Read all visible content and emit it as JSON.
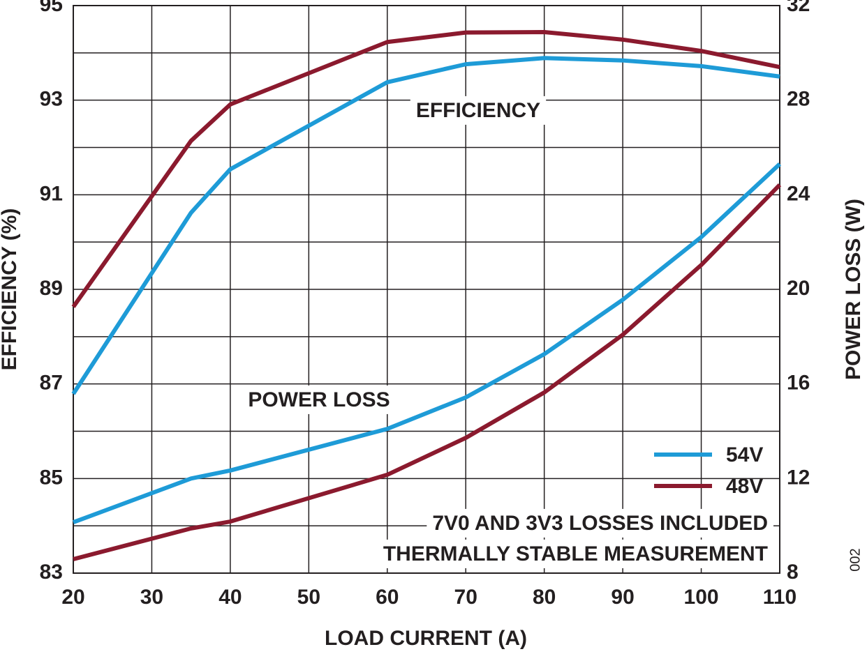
{
  "chart_data": {
    "type": "line",
    "x_label": "LOAD CURRENT (A)",
    "y_label": "EFFICIENCY (%)",
    "y2_label": "POWER LOSS (W)",
    "x": [
      20,
      35,
      40,
      60,
      70,
      80,
      90,
      100,
      110
    ],
    "xlim": [
      20,
      110
    ],
    "xticks": [
      20,
      30,
      40,
      50,
      60,
      70,
      80,
      90,
      100,
      110
    ],
    "ylim": [
      83,
      95
    ],
    "yticks": [
      83,
      85,
      87,
      89,
      91,
      93,
      95
    ],
    "yminorticks": [
      84,
      86,
      88,
      90,
      92,
      94
    ],
    "y2lim": [
      8,
      32
    ],
    "y2ticks": [
      8,
      12,
      16,
      20,
      24,
      28,
      32
    ],
    "grid": true,
    "legend": "lower right",
    "series": [
      {
        "name": "54V",
        "color": "#1e9bd7",
        "values": [
          86.79,
          90.62,
          91.54,
          93.38,
          93.76,
          93.89,
          93.84,
          93.72,
          93.5
        ]
      },
      {
        "name": "48V",
        "color": "#8b1a2e",
        "values": [
          88.63,
          92.14,
          92.91,
          94.23,
          94.43,
          94.44,
          94.28,
          94.04,
          93.7
        ]
      },
      {
        "name": "54V",
        "color": "#1e9bd7",
        "axis": "y2",
        "values": [
          10.15,
          12.0,
          12.34,
          14.1,
          15.43,
          17.26,
          19.56,
          22.21,
          25.3
        ]
      },
      {
        "name": "48V",
        "color": "#8b1a2e",
        "axis": "y2",
        "values": [
          8.59,
          9.89,
          10.18,
          12.16,
          13.72,
          15.64,
          18.08,
          21.03,
          24.42
        ]
      }
    ],
    "annotations": [
      "EFFICIENCY",
      "POWER LOSS",
      "7V0 AND 3V3 LOSSES INCLUDED",
      "THERMALLY STABLE MEASUREMENT",
      "002"
    ]
  }
}
